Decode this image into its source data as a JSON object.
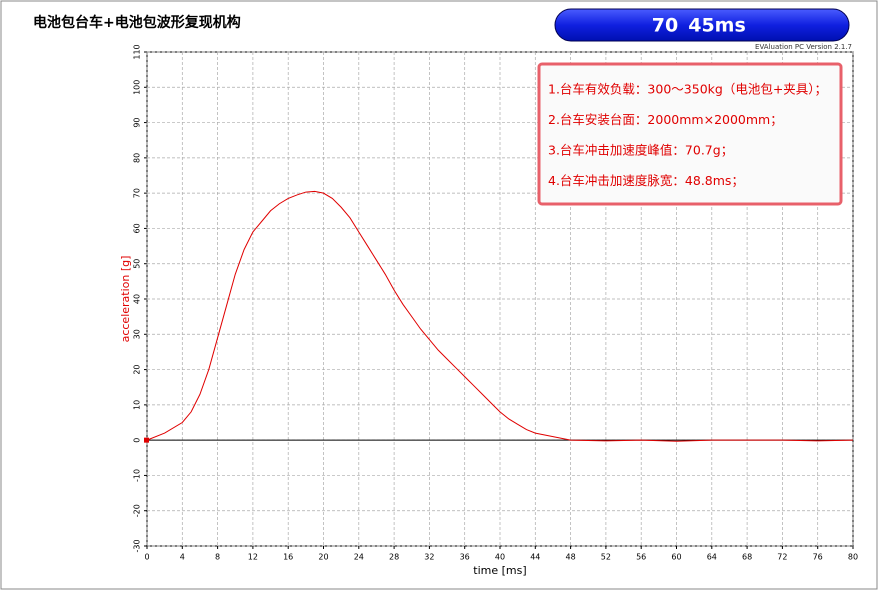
{
  "chart_data": {
    "type": "line",
    "title": "电池包台车+电池包波形复现机构",
    "badge": [
      "70",
      "45ms"
    ],
    "version": "EVAluation PC Version 2.1.7",
    "notes": [
      "1.台车有效负载：300～350kg（电池包+夹具）；",
      "2.台车安装台面：2000mm×2000mm；",
      "3.台车冲击加速度峰值：70.7g；",
      "4.台车冲击加速度脉宽：48.8ms；"
    ],
    "xlabel": "time [ms]",
    "ylabel": "acceleration [g]",
    "x": [
      0,
      2,
      4,
      5,
      6,
      7,
      8,
      9,
      10,
      11,
      12,
      13,
      14,
      15,
      16,
      17,
      18,
      19,
      20,
      21,
      22,
      23,
      24,
      25,
      26,
      27,
      28,
      29,
      30,
      31,
      32,
      33,
      34,
      35,
      36,
      37,
      38,
      39,
      40,
      41,
      42,
      43,
      44,
      46,
      48,
      52,
      56,
      60,
      64,
      68,
      72,
      76,
      80
    ],
    "values": [
      0,
      2,
      5,
      8,
      13,
      20,
      29,
      38,
      47,
      54,
      59,
      62,
      65,
      67,
      68.5,
      69.5,
      70.3,
      70.5,
      70,
      68.5,
      66,
      63,
      59,
      55,
      51,
      47,
      42.5,
      38.5,
      35,
      31.5,
      28.5,
      25.5,
      23,
      20.5,
      18,
      15.5,
      13,
      10.5,
      8,
      6,
      4.5,
      3,
      2,
      1,
      0,
      -0.2,
      0,
      -0.3,
      0,
      0,
      0,
      -0.2,
      0
    ],
    "color": "#e00000",
    "xlim": [
      0,
      80
    ],
    "xticks": [
      0,
      4,
      8,
      12,
      16,
      20,
      24,
      28,
      32,
      36,
      40,
      44,
      48,
      52,
      56,
      60,
      64,
      68,
      72,
      76,
      80
    ],
    "ylim": [
      -30,
      110
    ],
    "yticks": [
      -30,
      -20,
      -10,
      0,
      10,
      20,
      30,
      40,
      50,
      60,
      70,
      80,
      90,
      100,
      110
    ],
    "grid": true
  }
}
